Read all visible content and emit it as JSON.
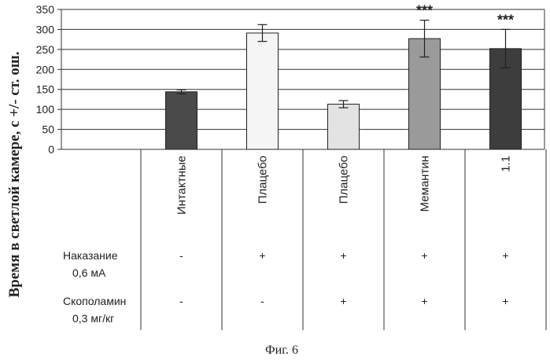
{
  "chart_data": {
    "type": "bar",
    "ylabel": "Время в светлой камере, с +/- ст. ош.",
    "ylim": [
      0,
      350
    ],
    "yticks": [
      0,
      50,
      100,
      150,
      200,
      250,
      300,
      350
    ],
    "grid": "horizontal",
    "categories": [
      "Интактные",
      "Плацебо",
      "Плацебо",
      "Мемантин",
      "1.1"
    ],
    "values": [
      144,
      291,
      113,
      277,
      252
    ],
    "errors": [
      5,
      21,
      9,
      46,
      48
    ],
    "significance": [
      "",
      "",
      "",
      "***",
      "***"
    ],
    "bar_colors": [
      "#4a4a4a",
      "#f5f5f5",
      "#e3e3e3",
      "#9a9a9a",
      "#3d3d3d"
    ],
    "rows": [
      {
        "label_line1": "Наказание",
        "label_line2": "0,6 мА",
        "marks": [
          "-",
          "+",
          "+",
          "+",
          "+"
        ]
      },
      {
        "label_line1": "Скополамин",
        "label_line2": "0,3 мг/кг",
        "marks": [
          "-",
          "-",
          "+",
          "+",
          "+"
        ]
      }
    ]
  },
  "caption": "Фиг. 6"
}
